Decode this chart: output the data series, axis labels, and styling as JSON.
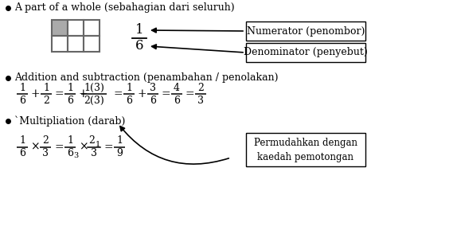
{
  "bg_color": "#ffffff",
  "bullet1": "A part of a whole (sebahagian dari seluruh)",
  "bullet2": "Addition and subtraction (penambahan / penolakan)",
  "bullet3": "`Multipliation (darab)",
  "numerator_label": "Numerator (penombor)",
  "denominator_label": "Denominator (penyebut)",
  "box_label": "Permudahkan dengan\nkaedah pemotongan",
  "grid_color": "#666666",
  "grid_fill": "#aaaaaa",
  "frac_line_color": "#000000",
  "text_color": "#000000"
}
